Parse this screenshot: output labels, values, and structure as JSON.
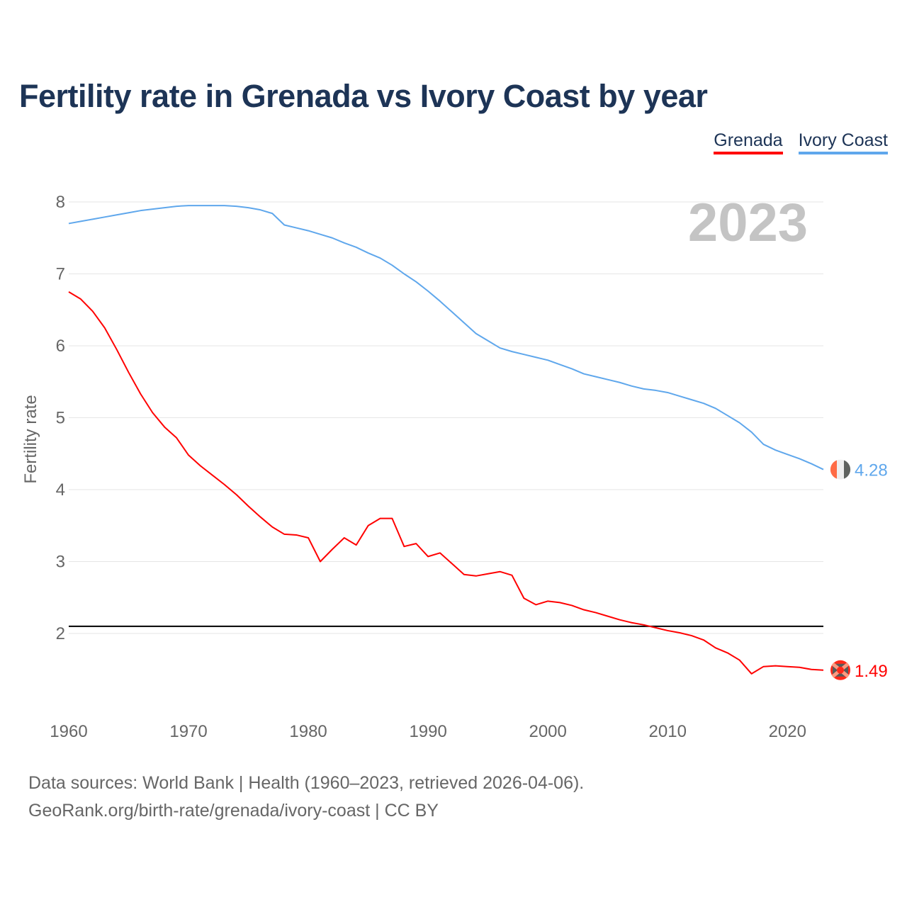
{
  "chart_data": {
    "type": "line",
    "title": "Fertility rate in Grenada vs Ivory Coast by year",
    "xlabel": "",
    "ylabel": "Fertility rate",
    "xlim": [
      1960,
      2023
    ],
    "ylim": [
      1,
      8
    ],
    "x_ticks": [
      "1960",
      "1970",
      "1980",
      "1990",
      "2000",
      "2010",
      "2020"
    ],
    "y_ticks": [
      "2",
      "3",
      "4",
      "5",
      "6",
      "7",
      "8"
    ],
    "grid": true,
    "legend_position": "top-right",
    "year_label": "2023",
    "reference_line": 2.1,
    "x": [
      1960,
      1961,
      1962,
      1963,
      1964,
      1965,
      1966,
      1967,
      1968,
      1969,
      1970,
      1971,
      1972,
      1973,
      1974,
      1975,
      1976,
      1977,
      1978,
      1979,
      1980,
      1981,
      1982,
      1983,
      1984,
      1985,
      1986,
      1987,
      1988,
      1989,
      1990,
      1991,
      1992,
      1993,
      1994,
      1995,
      1996,
      1997,
      1998,
      1999,
      2000,
      2001,
      2002,
      2003,
      2004,
      2005,
      2006,
      2007,
      2008,
      2009,
      2010,
      2011,
      2012,
      2013,
      2014,
      2015,
      2016,
      2017,
      2018,
      2019,
      2020,
      2021,
      2022,
      2023
    ],
    "series": [
      {
        "name": "Grenada",
        "color": "#ff0000",
        "end_label": "1.49",
        "values": [
          6.75,
          6.65,
          6.48,
          6.25,
          5.95,
          5.63,
          5.33,
          5.07,
          4.87,
          4.72,
          4.48,
          4.33,
          4.2,
          4.07,
          3.93,
          3.77,
          3.62,
          3.48,
          3.38,
          3.37,
          3.33,
          3.0,
          3.17,
          3.33,
          3.23,
          3.5,
          3.6,
          3.6,
          3.21,
          3.25,
          3.07,
          3.12,
          2.97,
          2.82,
          2.8,
          2.83,
          2.86,
          2.81,
          2.49,
          2.4,
          2.45,
          2.43,
          2.39,
          2.33,
          2.29,
          2.24,
          2.19,
          2.15,
          2.12,
          2.08,
          2.04,
          2.01,
          1.97,
          1.91,
          1.8,
          1.73,
          1.63,
          1.44,
          1.54,
          1.55,
          1.54,
          1.53,
          1.5,
          1.49
        ]
      },
      {
        "name": "Ivory Coast",
        "color": "#5fa7ec",
        "end_label": "4.28",
        "values": [
          7.7,
          7.73,
          7.76,
          7.79,
          7.82,
          7.85,
          7.88,
          7.9,
          7.92,
          7.94,
          7.95,
          7.95,
          7.95,
          7.95,
          7.94,
          7.92,
          7.89,
          7.84,
          7.68,
          7.64,
          7.6,
          7.55,
          7.5,
          7.43,
          7.37,
          7.29,
          7.22,
          7.12,
          7.0,
          6.89,
          6.76,
          6.62,
          6.47,
          6.32,
          6.17,
          6.07,
          5.97,
          5.92,
          5.88,
          5.84,
          5.8,
          5.74,
          5.68,
          5.61,
          5.57,
          5.53,
          5.49,
          5.44,
          5.4,
          5.38,
          5.35,
          5.3,
          5.25,
          5.2,
          5.13,
          5.03,
          4.93,
          4.8,
          4.63,
          4.55,
          4.49,
          4.43,
          4.36,
          4.28
        ]
      }
    ]
  },
  "footer": {
    "line1": "Data sources: World Bank | Health (1960–2023, retrieved 2026-04-06).",
    "line2": "GeoRank.org/birth-rate/grenada/ivory-coast | CC BY"
  }
}
